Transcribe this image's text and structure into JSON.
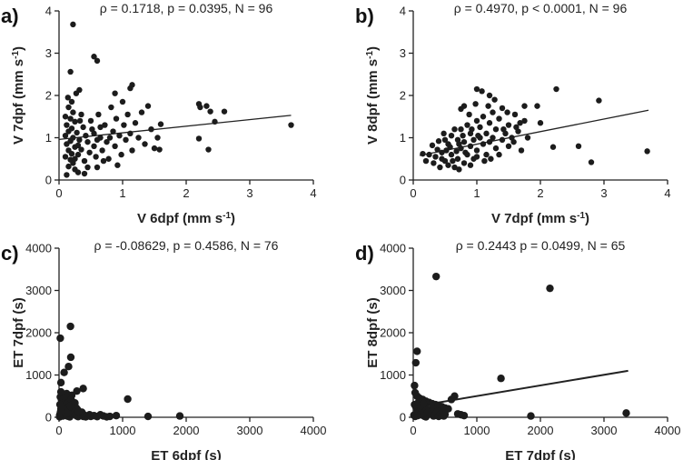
{
  "chart_data": [
    {
      "type": "scatter",
      "panel_label": "a)",
      "annotation": "ρ = 0.1718, p = 0.0395, N = 96",
      "xlabel": "V 6dpf (mm s⁻¹)",
      "ylabel": "V 7dpf (mm s⁻¹)",
      "xlim": [
        0,
        4
      ],
      "ylim": [
        0,
        4
      ],
      "xticks": [
        0,
        1,
        2,
        3,
        4
      ],
      "yticks": [
        0,
        1,
        2,
        3,
        4
      ],
      "regression": {
        "x": [
          0.0,
          3.65
        ],
        "y": [
          0.96,
          1.53
        ]
      },
      "points": [
        [
          0.22,
          3.68
        ],
        [
          0.55,
          2.92
        ],
        [
          0.6,
          2.82
        ],
        [
          0.18,
          2.56
        ],
        [
          0.32,
          2.13
        ],
        [
          0.27,
          2.05
        ],
        [
          0.14,
          1.95
        ],
        [
          1.15,
          2.25
        ],
        [
          1.12,
          2.17
        ],
        [
          0.88,
          2.05
        ],
        [
          0.2,
          1.85
        ],
        [
          0.15,
          1.72
        ],
        [
          0.22,
          1.6
        ],
        [
          0.1,
          1.5
        ],
        [
          0.18,
          1.45
        ],
        [
          0.25,
          1.38
        ],
        [
          0.12,
          1.3
        ],
        [
          0.2,
          1.22
        ],
        [
          0.15,
          1.15
        ],
        [
          0.1,
          1.05
        ],
        [
          0.22,
          1.0
        ],
        [
          0.18,
          0.92
        ],
        [
          0.12,
          0.85
        ],
        [
          0.25,
          0.78
        ],
        [
          0.15,
          0.7
        ],
        [
          0.2,
          0.62
        ],
        [
          0.1,
          0.55
        ],
        [
          0.18,
          0.48
        ],
        [
          0.22,
          0.4
        ],
        [
          0.15,
          0.32
        ],
        [
          0.25,
          0.25
        ],
        [
          0.3,
          0.18
        ],
        [
          0.12,
          0.12
        ],
        [
          0.28,
          1.12
        ],
        [
          0.32,
          0.95
        ],
        [
          0.3,
          0.82
        ],
        [
          0.35,
          0.72
        ],
        [
          0.38,
          1.25
        ],
        [
          0.42,
          1.05
        ],
        [
          0.45,
          0.9
        ],
        [
          0.48,
          0.65
        ],
        [
          0.5,
          1.4
        ],
        [
          0.52,
          1.2
        ],
        [
          0.55,
          0.8
        ],
        [
          0.58,
          0.55
        ],
        [
          0.6,
          0.3
        ],
        [
          0.62,
          1.55
        ],
        [
          0.65,
          1.0
        ],
        [
          0.68,
          0.7
        ],
        [
          0.72,
          1.3
        ],
        [
          0.75,
          0.9
        ],
        [
          0.78,
          0.5
        ],
        [
          0.82,
          1.72
        ],
        [
          0.85,
          1.15
        ],
        [
          0.88,
          0.8
        ],
        [
          0.9,
          1.45
        ],
        [
          0.95,
          1.05
        ],
        [
          0.98,
          0.6
        ],
        [
          1.0,
          1.85
        ],
        [
          1.02,
          1.3
        ],
        [
          1.05,
          0.95
        ],
        [
          1.08,
          1.55
        ],
        [
          1.12,
          1.1
        ],
        [
          1.15,
          0.7
        ],
        [
          1.2,
          1.35
        ],
        [
          1.25,
          1.0
        ],
        [
          1.3,
          1.6
        ],
        [
          1.35,
          0.85
        ],
        [
          1.4,
          1.75
        ],
        [
          1.45,
          1.2
        ],
        [
          1.5,
          0.75
        ],
        [
          1.55,
          1.0
        ],
        [
          1.58,
          0.72
        ],
        [
          1.6,
          1.32
        ],
        [
          2.2,
          1.8
        ],
        [
          2.22,
          1.72
        ],
        [
          2.32,
          1.75
        ],
        [
          2.38,
          1.62
        ],
        [
          2.45,
          1.38
        ],
        [
          2.6,
          1.62
        ],
        [
          2.2,
          0.98
        ],
        [
          2.35,
          0.72
        ],
        [
          3.65,
          1.3
        ],
        [
          0.4,
          0.45
        ],
        [
          0.35,
          1.55
        ],
        [
          0.45,
          0.3
        ],
        [
          0.3,
          0.6
        ],
        [
          0.55,
          1.1
        ],
        [
          0.7,
          0.45
        ],
        [
          0.8,
          1.0
        ],
        [
          0.65,
          1.25
        ],
        [
          0.92,
          0.35
        ],
        [
          0.4,
          0.15
        ],
        [
          0.25,
          0.5
        ],
        [
          0.33,
          1.4
        ],
        [
          0.6,
          0.95
        ]
      ]
    },
    {
      "type": "scatter",
      "panel_label": "b)",
      "annotation": "ρ = 0.4970, p < 0.0001, N = 96",
      "xlabel": "V 7dpf (mm s⁻¹)",
      "ylabel": "V 8dpf (mm s⁻¹)",
      "xlim": [
        0,
        4
      ],
      "ylim": [
        0,
        4
      ],
      "xticks": [
        0,
        1,
        2,
        3,
        4
      ],
      "yticks": [
        0,
        1,
        2,
        3,
        4
      ],
      "regression": {
        "x": [
          0.1,
          3.7
        ],
        "y": [
          0.58,
          1.65
        ]
      },
      "points": [
        [
          1.0,
          2.15
        ],
        [
          1.08,
          2.1
        ],
        [
          1.2,
          2.0
        ],
        [
          2.25,
          2.15
        ],
        [
          2.92,
          1.88
        ],
        [
          3.68,
          0.68
        ],
        [
          2.8,
          0.42
        ],
        [
          2.6,
          0.8
        ],
        [
          2.2,
          0.78
        ],
        [
          2.0,
          1.35
        ],
        [
          1.95,
          1.75
        ],
        [
          1.75,
          1.75
        ],
        [
          0.8,
          1.75
        ],
        [
          0.75,
          1.68
        ],
        [
          0.3,
          0.82
        ],
        [
          0.35,
          0.55
        ],
        [
          0.4,
          0.92
        ],
        [
          0.45,
          0.65
        ],
        [
          0.5,
          0.45
        ],
        [
          0.55,
          0.85
        ],
        [
          0.6,
          1.05
        ],
        [
          0.6,
          0.6
        ],
        [
          0.65,
          0.3
        ],
        [
          0.7,
          0.95
        ],
        [
          0.7,
          0.5
        ],
        [
          0.75,
          0.75
        ],
        [
          0.75,
          1.2
        ],
        [
          0.8,
          0.4
        ],
        [
          0.8,
          0.9
        ],
        [
          0.85,
          0.6
        ],
        [
          0.85,
          1.3
        ],
        [
          0.9,
          0.8
        ],
        [
          0.9,
          1.1
        ],
        [
          0.95,
          0.5
        ],
        [
          0.95,
          0.95
        ],
        [
          1.0,
          1.4
        ],
        [
          1.0,
          0.7
        ],
        [
          1.05,
          1.0
        ],
        [
          1.05,
          1.25
        ],
        [
          1.1,
          0.85
        ],
        [
          1.1,
          1.5
        ],
        [
          1.15,
          0.6
        ],
        [
          1.15,
          1.1
        ],
        [
          1.2,
          1.35
        ],
        [
          1.2,
          0.9
        ],
        [
          1.25,
          1.6
        ],
        [
          1.25,
          1.0
        ],
        [
          1.3,
          0.75
        ],
        [
          1.3,
          1.2
        ],
        [
          1.35,
          1.45
        ],
        [
          1.4,
          0.95
        ],
        [
          1.4,
          1.7
        ],
        [
          1.45,
          1.1
        ],
        [
          1.5,
          0.8
        ],
        [
          1.5,
          1.3
        ],
        [
          1.55,
          1.0
        ],
        [
          1.6,
          1.55
        ],
        [
          1.65,
          1.15
        ],
        [
          1.7,
          0.7
        ],
        [
          1.75,
          1.4
        ],
        [
          1.8,
          1.0
        ],
        [
          0.25,
          0.6
        ],
        [
          0.2,
          0.45
        ],
        [
          0.15,
          0.62
        ],
        [
          0.5,
          0.95
        ],
        [
          0.55,
          0.35
        ],
        [
          0.65,
          1.2
        ],
        [
          0.72,
          0.25
        ],
        [
          0.9,
          0.35
        ],
        [
          1.0,
          0.55
        ],
        [
          1.12,
          0.45
        ],
        [
          1.35,
          0.6
        ],
        [
          0.42,
          0.3
        ],
        [
          0.38,
          0.72
        ],
        [
          0.48,
          1.1
        ],
        [
          0.58,
          0.78
        ],
        [
          0.68,
          0.68
        ],
        [
          0.78,
          1.05
        ],
        [
          0.88,
          1.55
        ],
        [
          0.98,
          1.8
        ],
        [
          1.18,
          1.75
        ],
        [
          1.28,
          1.9
        ],
        [
          1.48,
          1.6
        ],
        [
          1.62,
          1.25
        ],
        [
          0.32,
          0.4
        ],
        [
          0.45,
          0.5
        ],
        [
          0.62,
          0.45
        ],
        [
          0.82,
          0.65
        ],
        [
          0.92,
          1.2
        ],
        [
          1.02,
          1.05
        ],
        [
          1.22,
          0.5
        ],
        [
          1.42,
          1.2
        ],
        [
          1.58,
          0.9
        ],
        [
          1.68,
          1.35
        ],
        [
          0.52,
          0.7
        ],
        [
          0.72,
          0.85
        ]
      ]
    },
    {
      "type": "scatter",
      "panel_label": "c)",
      "annotation": "ρ = -0.08629, p = 0.4586, N = 76",
      "xlabel": "ET 6dpf (s)",
      "ylabel": "ET 7dpf (s)",
      "xlim": [
        0,
        4000
      ],
      "ylim": [
        0,
        4000
      ],
      "xticks": [
        0,
        1000,
        2000,
        3000,
        4000
      ],
      "yticks": [
        0,
        1000,
        2000,
        3000,
        4000
      ],
      "points": [
        [
          20,
          1870
        ],
        [
          180,
          2150
        ],
        [
          185,
          1420
        ],
        [
          150,
          1200
        ],
        [
          80,
          1060
        ],
        [
          30,
          820
        ],
        [
          50,
          520
        ],
        [
          120,
          560
        ],
        [
          200,
          520
        ],
        [
          280,
          620
        ],
        [
          380,
          680
        ],
        [
          1080,
          430
        ],
        [
          20,
          480
        ],
        [
          40,
          400
        ],
        [
          60,
          350
        ],
        [
          80,
          300
        ],
        [
          100,
          250
        ],
        [
          30,
          200
        ],
        [
          50,
          150
        ],
        [
          70,
          120
        ],
        [
          90,
          80
        ],
        [
          110,
          50
        ],
        [
          130,
          30
        ],
        [
          150,
          20
        ],
        [
          170,
          10
        ],
        [
          20,
          100
        ],
        [
          40,
          60
        ],
        [
          60,
          30
        ],
        [
          10,
          10
        ],
        [
          200,
          200
        ],
        [
          220,
          150
        ],
        [
          240,
          100
        ],
        [
          260,
          60
        ],
        [
          280,
          30
        ],
        [
          300,
          15
        ],
        [
          320,
          40
        ],
        [
          340,
          80
        ],
        [
          360,
          120
        ],
        [
          380,
          20
        ],
        [
          400,
          50
        ],
        [
          420,
          10
        ],
        [
          450,
          30
        ],
        [
          480,
          60
        ],
        [
          500,
          20
        ],
        [
          550,
          40
        ],
        [
          600,
          15
        ],
        [
          650,
          60
        ],
        [
          700,
          30
        ],
        [
          750,
          10
        ],
        [
          800,
          20
        ],
        [
          900,
          40
        ],
        [
          1400,
          20
        ],
        [
          1900,
          30
        ],
        [
          30,
          600
        ],
        [
          50,
          380
        ],
        [
          70,
          430
        ],
        [
          100,
          470
        ],
        [
          130,
          330
        ],
        [
          160,
          360
        ],
        [
          190,
          420
        ],
        [
          210,
          300
        ],
        [
          230,
          260
        ],
        [
          250,
          340
        ],
        [
          270,
          220
        ],
        [
          290,
          180
        ],
        [
          310,
          140
        ],
        [
          140,
          90
        ],
        [
          160,
          250
        ],
        [
          60,
          230
        ],
        [
          80,
          180
        ],
        [
          100,
          140
        ],
        [
          120,
          100
        ],
        [
          10,
          50
        ],
        [
          15,
          300
        ],
        [
          25,
          130
        ],
        [
          35,
          250
        ]
      ]
    },
    {
      "type": "scatter",
      "panel_label": "d)",
      "annotation": "ρ = 0.2443 p = 0.0499, N = 65",
      "xlabel": "ET 7dpf (s)",
      "ylabel": "ET 8dpf (s)",
      "xlim": [
        0,
        4000
      ],
      "ylim": [
        0,
        4000
      ],
      "xticks": [
        0,
        1000,
        2000,
        3000,
        4000
      ],
      "yticks": [
        0,
        1000,
        2000,
        3000,
        4000
      ],
      "regression": {
        "x": [
          0,
          3380
        ],
        "y": [
          250,
          1100
        ]
      },
      "points": [
        [
          360,
          3330
        ],
        [
          2150,
          3050
        ],
        [
          1380,
          920
        ],
        [
          3350,
          100
        ],
        [
          1850,
          30
        ],
        [
          60,
          1560
        ],
        [
          40,
          1290
        ],
        [
          20,
          750
        ],
        [
          30,
          580
        ],
        [
          60,
          500
        ],
        [
          100,
          450
        ],
        [
          150,
          420
        ],
        [
          200,
          380
        ],
        [
          250,
          350
        ],
        [
          300,
          320
        ],
        [
          350,
          300
        ],
        [
          400,
          280
        ],
        [
          450,
          250
        ],
        [
          500,
          220
        ],
        [
          550,
          200
        ],
        [
          600,
          420
        ],
        [
          650,
          500
        ],
        [
          700,
          80
        ],
        [
          750,
          60
        ],
        [
          800,
          40
        ],
        [
          20,
          300
        ],
        [
          40,
          250
        ],
        [
          60,
          200
        ],
        [
          80,
          150
        ],
        [
          100,
          100
        ],
        [
          120,
          80
        ],
        [
          140,
          60
        ],
        [
          160,
          40
        ],
        [
          180,
          20
        ],
        [
          200,
          10
        ],
        [
          220,
          50
        ],
        [
          240,
          90
        ],
        [
          260,
          130
        ],
        [
          280,
          170
        ],
        [
          300,
          210
        ],
        [
          320,
          30
        ],
        [
          340,
          60
        ],
        [
          360,
          100
        ],
        [
          380,
          140
        ],
        [
          400,
          20
        ],
        [
          420,
          50
        ],
        [
          440,
          90
        ],
        [
          460,
          130
        ],
        [
          480,
          30
        ],
        [
          500,
          70
        ],
        [
          10,
          50
        ],
        [
          30,
          20
        ],
        [
          50,
          80
        ],
        [
          70,
          40
        ],
        [
          90,
          120
        ],
        [
          110,
          60
        ],
        [
          130,
          200
        ],
        [
          150,
          150
        ],
        [
          170,
          100
        ],
        [
          190,
          250
        ],
        [
          210,
          180
        ],
        [
          230,
          120
        ],
        [
          80,
          350
        ],
        [
          120,
          280
        ],
        [
          160,
          320
        ]
      ]
    }
  ]
}
